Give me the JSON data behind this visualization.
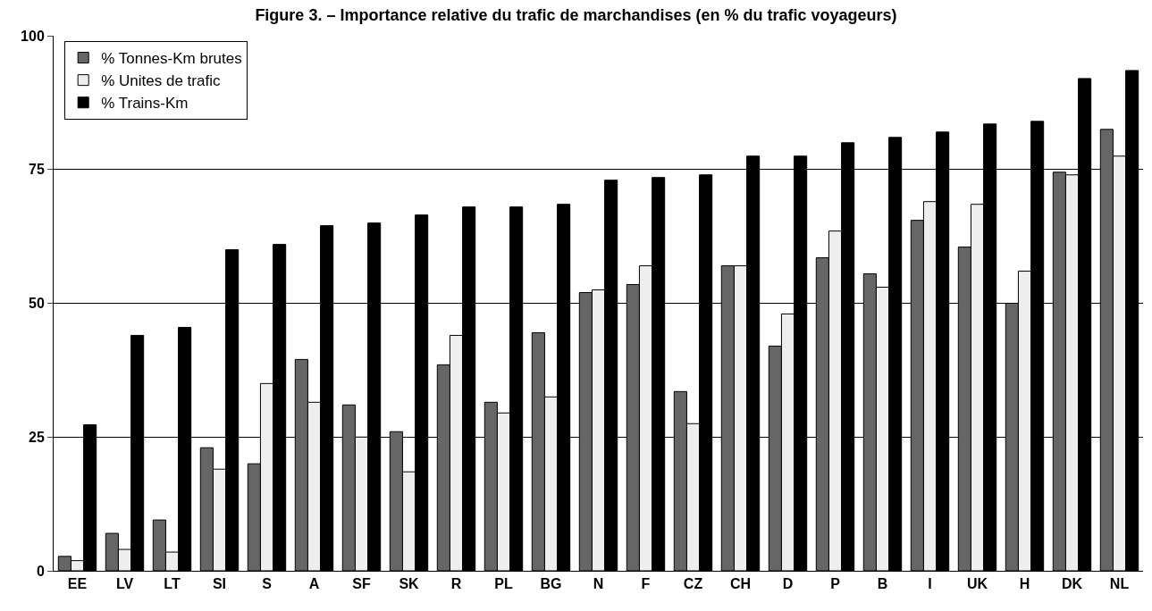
{
  "chart_data": {
    "type": "bar",
    "title": "Figure 3. – Importance relative du trafic de marchandises (en % du trafic voyageurs)",
    "categories": [
      "EE",
      "LV",
      "LT",
      "SI",
      "S",
      "A",
      "SF",
      "SK",
      "R",
      "PL",
      "BG",
      "N",
      "F",
      "CZ",
      "CH",
      "D",
      "P",
      "B",
      "I",
      "UK",
      "H",
      "DK",
      "NL"
    ],
    "series": [
      {
        "name": "% Tonnes-Km brutes",
        "color": "#666666",
        "values": [
          2.7,
          7,
          9.5,
          23,
          20,
          39.5,
          31,
          26,
          38.5,
          31.5,
          44.5,
          52,
          53.5,
          33.5,
          57,
          42,
          58.5,
          55.5,
          65.5,
          60.5,
          50,
          74.5,
          82.5
        ]
      },
      {
        "name": "% Unites de trafic",
        "color": "#eeeeee",
        "values": [
          1.9,
          4,
          3.5,
          19,
          35,
          31.5,
          25,
          18.5,
          44,
          29.5,
          32.5,
          52.5,
          57,
          27.5,
          57,
          48,
          63.5,
          53,
          69,
          68.5,
          56,
          74,
          77.5
        ]
      },
      {
        "name": "% Trains-Km",
        "color": "#000000",
        "values": [
          27.3,
          44,
          45.5,
          60,
          61,
          64.5,
          65,
          66.5,
          68,
          68,
          68.5,
          73,
          73.5,
          74,
          77.5,
          77.5,
          80,
          81,
          82,
          83.5,
          84,
          92,
          93.5
        ]
      }
    ],
    "ylim": [
      0,
      100
    ],
    "yticks": [
      0,
      25,
      50,
      75,
      100
    ],
    "grid": "y",
    "legend": "top left"
  }
}
